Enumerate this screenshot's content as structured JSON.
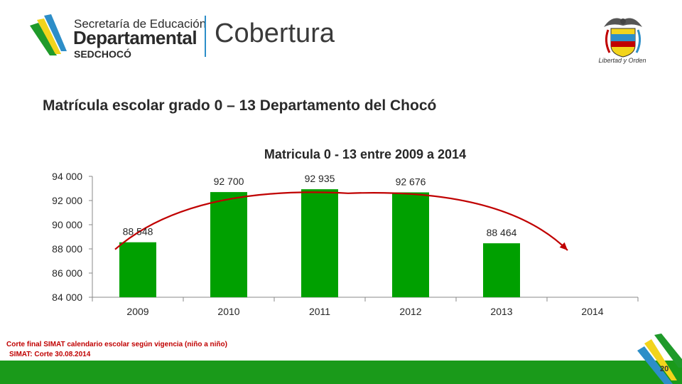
{
  "header": {
    "org_line1": "Secretaría de Educación",
    "org_line2": "Departamental",
    "org_line3": "SEDCHOCÓ",
    "section_name": "Cobertura",
    "crest_motto": "Libertad y Orden"
  },
  "slide": {
    "title": "Matrícula escolar grado 0 – 13 Departamento del Chocó",
    "page_number": "20"
  },
  "footnotes": {
    "line1": "Corte final SIMAT calendario escolar según vigencia (niño a niño)",
    "line2": "SIMAT: Corte 30.08.2014"
  },
  "colors": {
    "bar": "#00a000",
    "trend": "#c00000",
    "footer": "#1a9a1a",
    "accent_blue": "#2d8ec8",
    "accent_yellow": "#f2d41c"
  },
  "chart_data": {
    "type": "bar",
    "title": "Matricula  0 - 13  entre 2009 a 2014",
    "categories": [
      "2009",
      "2010",
      "2011",
      "2012",
      "2013",
      "2014"
    ],
    "values": [
      88548,
      92700,
      92935,
      92676,
      88464,
      null
    ],
    "data_labels": [
      "88 548",
      "92 700",
      "92 935",
      "92 676",
      "88 464",
      ""
    ],
    "ylim": [
      84000,
      94000
    ],
    "yticks": [
      84000,
      86000,
      88000,
      90000,
      92000,
      94000
    ],
    "ytick_labels": [
      "84 000",
      "86 000",
      "88 000",
      "90 000",
      "92 000",
      "94 000"
    ],
    "xlabel": "",
    "ylabel": "",
    "grid": false,
    "legend": "none",
    "trend_line": {
      "type": "curved-arrow",
      "points": [
        {
          "x": "2009",
          "y": 88548
        },
        {
          "x": "2011",
          "y": 92600
        },
        {
          "x": "2014",
          "y": 88000
        }
      ]
    }
  }
}
